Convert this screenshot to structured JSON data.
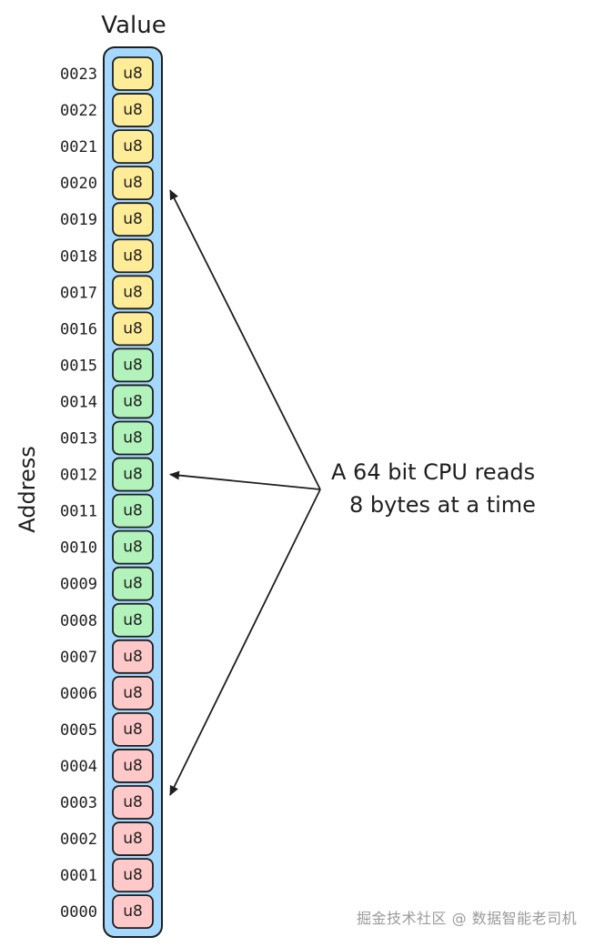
{
  "value_label": "Value",
  "address_label": "Address",
  "cell_label": "u8",
  "addresses": [
    "0023",
    "0022",
    "0021",
    "0020",
    "0019",
    "0018",
    "0017",
    "0016",
    "0015",
    "0014",
    "0013",
    "0012",
    "0011",
    "0010",
    "0009",
    "0008",
    "0007",
    "0006",
    "0005",
    "0004",
    "0003",
    "0002",
    "0001",
    "0000"
  ],
  "groups": [
    {
      "range": [
        "0016",
        "0023"
      ],
      "color": "#ffec99"
    },
    {
      "range": [
        "0008",
        "0015"
      ],
      "color": "#b2f2bb"
    },
    {
      "range": [
        "0000",
        "0007"
      ],
      "color": "#ffc9c9"
    }
  ],
  "column_color": "#a5d8ff",
  "annotation": {
    "line1": "A 64 bit CPU reads",
    "line2": "8 bytes at a time"
  },
  "arrow_targets": [
    "0020",
    "0012",
    "0003"
  ],
  "watermark": "掘金技术社区 @ 数据智能老司机"
}
